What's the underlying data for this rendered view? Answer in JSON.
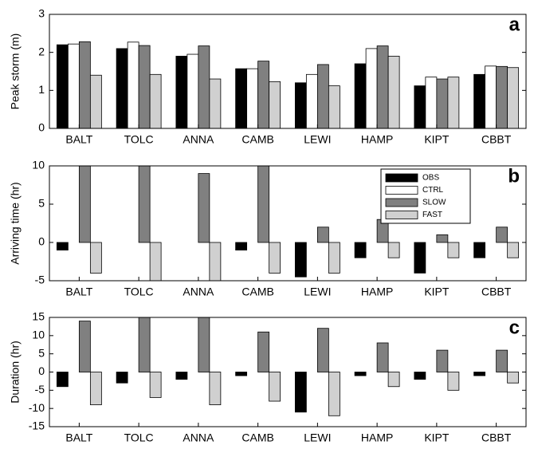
{
  "chart_data": [
    {
      "type": "bar",
      "label": "a",
      "ylabel": "Peak storm (m)",
      "categories": [
        "BALT",
        "TOLC",
        "ANNA",
        "CAMB",
        "LEWI",
        "HAMP",
        "KIPT",
        "CBBT"
      ],
      "ylim": [
        0,
        3
      ],
      "yticks": [
        0,
        1,
        2,
        3
      ],
      "series": [
        {
          "color": "#000000",
          "values": [
            2.2,
            2.1,
            1.9,
            1.57,
            1.2,
            1.7,
            1.12,
            1.42
          ]
        },
        {
          "color": "#ffffff",
          "values": [
            2.22,
            2.27,
            1.95,
            1.57,
            1.42,
            2.1,
            1.35,
            1.64
          ]
        },
        {
          "color": "#808080",
          "values": [
            2.28,
            2.18,
            2.17,
            1.77,
            1.68,
            2.17,
            1.3,
            1.63
          ]
        },
        {
          "color": "#d0d0d0",
          "values": [
            1.4,
            1.42,
            1.3,
            1.23,
            1.12,
            1.9,
            1.35,
            1.6
          ]
        }
      ]
    },
    {
      "type": "bar",
      "label": "b",
      "ylabel": "Arriving time (hr)",
      "legend": "upper right",
      "categories": [
        "BALT",
        "TOLC",
        "ANNA",
        "CAMB",
        "LEWI",
        "HAMP",
        "KIPT",
        "CBBT"
      ],
      "ylim": [
        -5,
        10
      ],
      "yticks": [
        -5,
        0,
        5,
        10
      ],
      "series": [
        {
          "name": "OBS",
          "color": "#000000",
          "values": [
            -1,
            0,
            0,
            -1,
            -4.5,
            -2,
            -4,
            -2
          ]
        },
        {
          "name": "CTRL",
          "color": "#ffffff",
          "values": [
            0,
            0,
            0,
            0,
            0,
            0,
            0,
            0
          ]
        },
        {
          "name": "SLOW",
          "color": "#808080",
          "values": [
            10,
            10,
            9,
            10,
            2,
            3,
            1,
            2
          ]
        },
        {
          "name": "FAST",
          "color": "#d0d0d0",
          "values": [
            -4,
            -5,
            -5,
            -4,
            -4,
            -2,
            -2,
            -2
          ]
        }
      ]
    },
    {
      "type": "bar",
      "label": "c",
      "ylabel": "Duration (hr)",
      "categories": [
        "BALT",
        "TOLC",
        "ANNA",
        "CAMB",
        "LEWI",
        "HAMP",
        "KIPT",
        "CBBT"
      ],
      "ylim": [
        -15,
        15
      ],
      "yticks": [
        -15,
        -10,
        -5,
        0,
        5,
        10,
        15
      ],
      "series": [
        {
          "color": "#000000",
          "values": [
            -4,
            -3,
            -2,
            -1,
            -11,
            -1,
            -2,
            -1
          ]
        },
        {
          "color": "#ffffff",
          "values": [
            0,
            0,
            0,
            0,
            0,
            0,
            0,
            0
          ]
        },
        {
          "color": "#808080",
          "values": [
            14,
            15,
            15,
            11,
            12,
            8,
            6,
            6
          ]
        },
        {
          "color": "#d0d0d0",
          "values": [
            -9,
            -7,
            -9,
            -8,
            -12,
            -4,
            -5,
            -3
          ]
        }
      ]
    }
  ]
}
